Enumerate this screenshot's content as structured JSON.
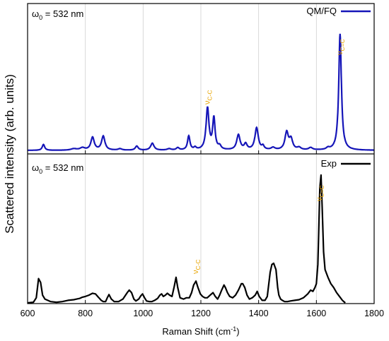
{
  "chart_data": {
    "type": "line",
    "xlabel": "Raman Shift (cm",
    "xlabel_sup": "-1",
    "xlabel_end": ")",
    "ylabel": "Scattered intensity (arb. units)",
    "xlim": [
      600,
      1800
    ],
    "xticks": [
      600,
      800,
      1000,
      1200,
      1400,
      1600,
      1800
    ],
    "grid": "vertical",
    "panels": [
      {
        "id": "top",
        "note": "ω",
        "note_sub": "0",
        "note_end": " = 532 nm",
        "legend": "QM/FQ",
        "legend_placement": "top-right",
        "color": "#1515b8",
        "peaks": [
          {
            "x": 655,
            "h": 0.05,
            "w": 5
          },
          {
            "x": 760,
            "h": 0.012,
            "w": 12
          },
          {
            "x": 790,
            "h": 0.02,
            "w": 10
          },
          {
            "x": 825,
            "h": 0.11,
            "w": 7
          },
          {
            "x": 862,
            "h": 0.12,
            "w": 7
          },
          {
            "x": 920,
            "h": 0.012,
            "w": 8
          },
          {
            "x": 978,
            "h": 0.035,
            "w": 6
          },
          {
            "x": 1032,
            "h": 0.06,
            "w": 7
          },
          {
            "x": 1090,
            "h": 0.012,
            "w": 8
          },
          {
            "x": 1120,
            "h": 0.02,
            "w": 6
          },
          {
            "x": 1158,
            "h": 0.12,
            "w": 5
          },
          {
            "x": 1180,
            "h": 0.02,
            "w": 5
          },
          {
            "x": 1223,
            "h": 0.36,
            "w": 6
          },
          {
            "x": 1245,
            "h": 0.27,
            "w": 5
          },
          {
            "x": 1265,
            "h": 0.03,
            "w": 6
          },
          {
            "x": 1330,
            "h": 0.13,
            "w": 7
          },
          {
            "x": 1355,
            "h": 0.05,
            "w": 6
          },
          {
            "x": 1393,
            "h": 0.19,
            "w": 7
          },
          {
            "x": 1415,
            "h": 0.03,
            "w": 5
          },
          {
            "x": 1450,
            "h": 0.02,
            "w": 8
          },
          {
            "x": 1497,
            "h": 0.15,
            "w": 7
          },
          {
            "x": 1512,
            "h": 0.09,
            "w": 7
          },
          {
            "x": 1540,
            "h": 0.02,
            "w": 8
          },
          {
            "x": 1580,
            "h": 0.02,
            "w": 8
          },
          {
            "x": 1640,
            "h": 0.015,
            "w": 6
          },
          {
            "x": 1682,
            "h": 1.0,
            "w": 5.5
          }
        ],
        "annotations": [
          {
            "base": "ν",
            "sub": "C-C",
            "x": 1223
          },
          {
            "base": "ν",
            "sub": "C=C",
            "x": 1682
          }
        ]
      },
      {
        "id": "bottom",
        "note": "ω",
        "note_sub": "0",
        "note_end": " = 532 nm",
        "legend": "Exp",
        "legend_placement": "top-right",
        "color": "#000000",
        "spectrum": {
          "x": [
            600,
            620,
            630,
            638,
            645,
            652,
            660,
            680,
            700,
            720,
            740,
            760,
            770,
            780,
            790,
            800,
            812,
            825,
            835,
            845,
            855,
            862,
            870,
            876,
            882,
            890,
            900,
            915,
            930,
            945,
            952,
            960,
            968,
            975,
            985,
            992,
            998,
            1005,
            1012,
            1022,
            1030,
            1040,
            1050,
            1058,
            1064,
            1070,
            1077,
            1084,
            1092,
            1100,
            1108,
            1114,
            1120,
            1128,
            1140,
            1150,
            1160,
            1168,
            1175,
            1183,
            1190,
            1198,
            1206,
            1214,
            1222,
            1232,
            1242,
            1250,
            1258,
            1265,
            1272,
            1280,
            1285,
            1292,
            1300,
            1310,
            1320,
            1330,
            1340,
            1345,
            1352,
            1360,
            1368,
            1378,
            1388,
            1395,
            1402,
            1412,
            1422,
            1430,
            1440,
            1446,
            1452,
            1460,
            1466,
            1470,
            1476,
            1482,
            1490,
            1500,
            1510,
            1525,
            1540,
            1555,
            1570,
            1580,
            1588,
            1595,
            1600,
            1605,
            1608,
            1612,
            1616,
            1620,
            1625,
            1630,
            1640,
            1650,
            1660,
            1670,
            1680,
            1690,
            1700
          ],
          "y": [
            0.0,
            0.005,
            0.04,
            0.19,
            0.16,
            0.06,
            0.03,
            0.01,
            0.005,
            0.01,
            0.02,
            0.025,
            0.03,
            0.035,
            0.045,
            0.05,
            0.06,
            0.075,
            0.07,
            0.045,
            0.02,
            0.01,
            0.01,
            0.04,
            0.065,
            0.03,
            0.01,
            0.01,
            0.03,
            0.08,
            0.1,
            0.08,
            0.03,
            0.015,
            0.03,
            0.055,
            0.07,
            0.04,
            0.015,
            0.01,
            0.01,
            0.02,
            0.035,
            0.06,
            0.07,
            0.05,
            0.06,
            0.075,
            0.06,
            0.05,
            0.13,
            0.2,
            0.12,
            0.04,
            0.03,
            0.04,
            0.04,
            0.08,
            0.14,
            0.17,
            0.12,
            0.07,
            0.05,
            0.04,
            0.04,
            0.06,
            0.08,
            0.05,
            0.03,
            0.06,
            0.1,
            0.14,
            0.12,
            0.08,
            0.05,
            0.04,
            0.06,
            0.1,
            0.15,
            0.15,
            0.12,
            0.06,
            0.03,
            0.04,
            0.06,
            0.09,
            0.05,
            0.02,
            0.02,
            0.05,
            0.24,
            0.3,
            0.31,
            0.26,
            0.12,
            0.06,
            0.03,
            0.02,
            0.01,
            0.01,
            0.015,
            0.02,
            0.025,
            0.04,
            0.07,
            0.1,
            0.09,
            0.12,
            0.15,
            0.3,
            0.55,
            0.9,
            1.0,
            0.75,
            0.4,
            0.26,
            0.2,
            0.15,
            0.12,
            0.08,
            0.05,
            0.02,
            0.0
          ]
        },
        "annotations": [
          {
            "base": "ν",
            "sub": "C-C",
            "x": 1183
          },
          {
            "base": "ν",
            "sub": "C=C",
            "x": 1612
          }
        ]
      }
    ]
  }
}
